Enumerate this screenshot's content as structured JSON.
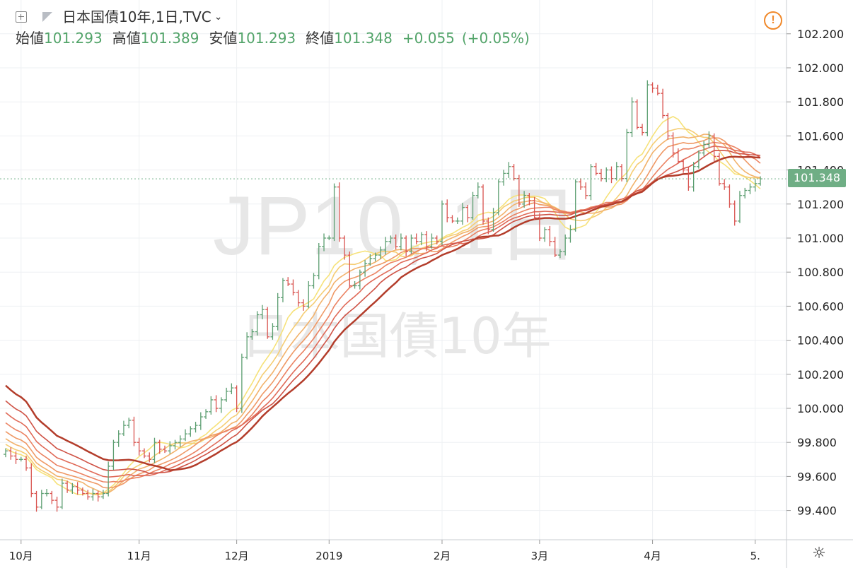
{
  "chart_data": {
    "type": "candlestick",
    "symbol": "日本国債10年",
    "interval": "1日",
    "source": "TVC",
    "watermark_line1": "JP10, 1日",
    "watermark_line2": "日本国債10年",
    "ohlc": {
      "open_label": "始値",
      "open": "101.293",
      "high_label": "高値",
      "high": "101.389",
      "low_label": "安値",
      "low": "101.293",
      "close_label": "終値",
      "close": "101.348",
      "change": "+0.055",
      "change_pct": "(+0.05%)"
    },
    "last_price_label": "101.348",
    "last_price": 101.348,
    "y_axis": {
      "min": 99.3,
      "max": 102.3,
      "ticks": [
        "99.400",
        "99.600",
        "99.800",
        "100.000",
        "100.200",
        "100.400",
        "100.600",
        "100.800",
        "101.000",
        "101.200",
        "101.400",
        "101.600",
        "101.800",
        "102.000",
        "102.200"
      ]
    },
    "x_axis": {
      "ticks": [
        {
          "label": "10月",
          "i": 3
        },
        {
          "label": "11月",
          "i": 26
        },
        {
          "label": "12月",
          "i": 45
        },
        {
          "label": "2019",
          "i": 63
        },
        {
          "label": "2月",
          "i": 85
        },
        {
          "label": "3月",
          "i": 104
        },
        {
          "label": "4月",
          "i": 126
        },
        {
          "label": "5.",
          "i": 146
        }
      ]
    },
    "closes": [
      99.75,
      99.72,
      99.7,
      99.7,
      99.65,
      99.5,
      99.42,
      99.5,
      99.5,
      99.46,
      99.42,
      99.56,
      99.52,
      99.54,
      99.52,
      99.5,
      99.48,
      99.5,
      99.48,
      99.5,
      99.66,
      99.8,
      99.85,
      99.9,
      99.93,
      99.8,
      99.75,
      99.72,
      99.7,
      99.8,
      99.76,
      99.75,
      99.78,
      99.8,
      99.82,
      99.85,
      99.88,
      99.9,
      99.95,
      99.98,
      100.05,
      100.0,
      100.05,
      100.1,
      100.12,
      100.0,
      100.3,
      100.42,
      100.45,
      100.55,
      100.58,
      100.42,
      100.48,
      100.65,
      100.75,
      100.73,
      100.68,
      100.62,
      100.6,
      100.72,
      100.78,
      100.95,
      101.0,
      101.0,
      101.3,
      101.0,
      100.9,
      100.72,
      100.72,
      100.8,
      100.85,
      100.88,
      100.9,
      100.93,
      100.98,
      101.0,
      100.95,
      101.0,
      100.92,
      101.0,
      100.98,
      101.02,
      100.95,
      101.0,
      100.98,
      101.2,
      101.12,
      101.1,
      101.1,
      101.18,
      101.12,
      101.25,
      101.3,
      101.1,
      101.05,
      101.15,
      101.33,
      101.38,
      101.42,
      101.35,
      101.2,
      101.25,
      101.22,
      101.12,
      101.0,
      101.05,
      100.98,
      100.9,
      100.92,
      101.0,
      101.05,
      101.33,
      101.3,
      101.25,
      101.42,
      101.38,
      101.35,
      101.4,
      101.35,
      101.42,
      101.35,
      101.62,
      101.8,
      101.65,
      101.62,
      101.9,
      101.88,
      101.85,
      101.72,
      101.6,
      101.5,
      101.45,
      101.4,
      101.3,
      101.42,
      101.5,
      101.55,
      101.6,
      101.48,
      101.32,
      101.3,
      101.2,
      101.1,
      101.25,
      101.28,
      101.3,
      101.32,
      101.348
    ],
    "ma_colors": [
      "#f6e27a",
      "#f5cd73",
      "#f2b26b",
      "#ef9966",
      "#eb8262",
      "#e06a58",
      "#cf5245",
      "#b33d2b"
    ],
    "price_line_color": "#6fae85"
  }
}
